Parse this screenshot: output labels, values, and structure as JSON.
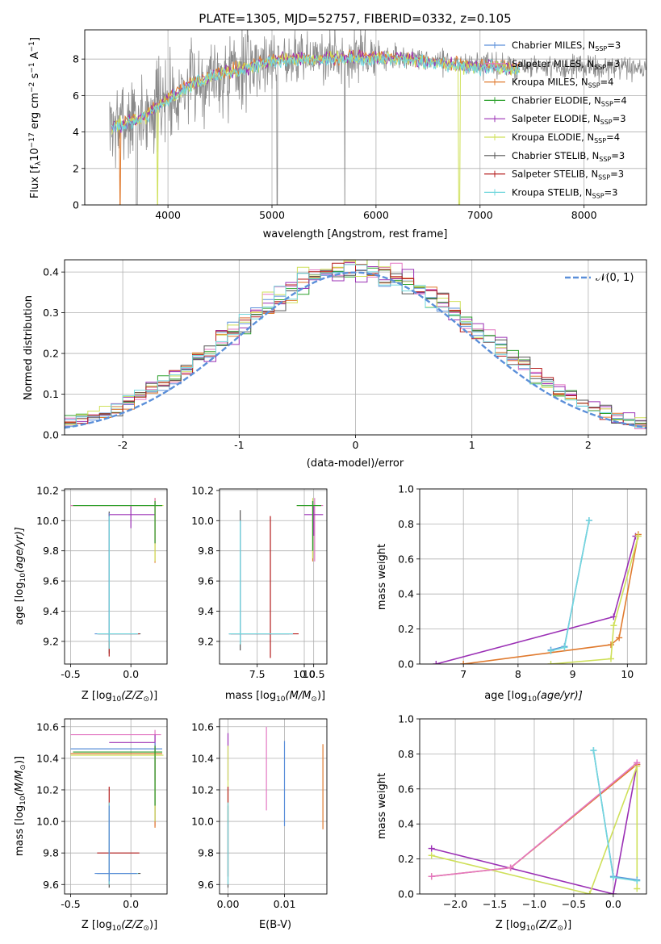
{
  "colors": {
    "Chabrier MILES": "#5b8fd9",
    "Salpeter MILES": "#e377c2",
    "Kroupa MILES": "#e07a2e",
    "Chabrier ELODIE": "#2ca02c",
    "Salpeter ELODIE": "#9b30b5",
    "Kroupa ELODIE": "#cfe05a",
    "Chabrier STELIB": "#555555",
    "Salpeter STELIB": "#b51d1d",
    "Kroupa STELIB": "#72d7dd",
    "normal": "#5b8fd9"
  },
  "chart_data": [
    {
      "type": "line",
      "title": "PLATE=1305, MJD=52757, FIBERID=0332, z=0.105",
      "xlabel": "wavelength [Angstrom, rest frame]",
      "ylabel": "Flux [f",
      "ylabel_sub": "λ",
      "ylabel_rest": "10",
      "ylabel_sup": "−17",
      "ylabel_unit": " erg cm",
      "ylabel_sup2": "−2",
      "ylabel_unit2": " s",
      "ylabel_sup3": "−1",
      "ylabel_unit3": " A",
      "ylabel_sup4": "−1",
      "ylabel_end": "]",
      "xlim": [
        3200,
        8600
      ],
      "ylim": [
        0,
        9.6
      ],
      "xticks": [
        4000,
        5000,
        6000,
        7000,
        8000
      ],
      "yticks": [
        0,
        2,
        4,
        6,
        8
      ],
      "legend_position": "top-right",
      "legend": [
        {
          "name": "Chabrier MILES",
          "n": "3"
        },
        {
          "name": "Salpeter MILES",
          "n": "3"
        },
        {
          "name": "Kroupa MILES",
          "n": "4"
        },
        {
          "name": "Chabrier ELODIE",
          "n": "4"
        },
        {
          "name": "Salpeter ELODIE",
          "n": "3"
        },
        {
          "name": "Kroupa ELODIE",
          "n": "4"
        },
        {
          "name": "Chabrier STELIB",
          "n": "3"
        },
        {
          "name": "Salpeter STELIB",
          "n": "3"
        },
        {
          "name": "Kroupa STELIB",
          "n": "3"
        }
      ],
      "legend_prefix": ", N",
      "legend_sub": "SSP",
      "legend_eq": "=",
      "continuum": [
        [
          3450,
          4.3
        ],
        [
          3600,
          4.6
        ],
        [
          3800,
          5.0
        ],
        [
          4000,
          5.9
        ],
        [
          4200,
          6.6
        ],
        [
          4400,
          7.1
        ],
        [
          4600,
          7.4
        ],
        [
          4800,
          7.7
        ],
        [
          5000,
          8.0
        ],
        [
          5300,
          8.1
        ],
        [
          5600,
          8.1
        ],
        [
          5900,
          8.15
        ],
        [
          6200,
          8.1
        ],
        [
          6500,
          7.9
        ],
        [
          6800,
          7.75
        ],
        [
          7100,
          7.65
        ],
        [
          7400,
          7.5
        ]
      ],
      "data_range": [
        3440,
        8600
      ]
    },
    {
      "type": "bar",
      "xlabel": "(data-model)/error",
      "ylabel": "Normed distribution",
      "xlim": [
        -2.5,
        2.5
      ],
      "ylim": [
        0,
        0.43
      ],
      "xticks": [
        -2,
        -1,
        0,
        1,
        2
      ],
      "yticks": [
        0.0,
        0.1,
        0.2,
        0.3,
        0.4
      ],
      "legend_position": "top-right",
      "normal_label": "𝒩(0, 1)",
      "bin_width": 0.1,
      "bin_start": -2.5
    },
    {
      "type": "scatter",
      "name": "age-vs-Z",
      "xlabel": "Z [log",
      "xlabel_sub": "10",
      "xlabel_rest": "(Z/Z",
      "xlabel_sub2": "⊙",
      "xlabel_end": ")]",
      "ylabel": "age  [log",
      "ylabel_sub": "10",
      "ylabel_rest": "(age/yr)]",
      "xlim": [
        -0.55,
        0.3
      ],
      "ylim": [
        9.05,
        10.21
      ],
      "xticks": [
        "-0.5",
        "0.0"
      ],
      "yticks": [
        "9.2",
        "9.4",
        "9.6",
        "9.8",
        "10.0",
        "10.2"
      ]
    },
    {
      "type": "scatter",
      "name": "age-vs-mass",
      "xlabel": "mass [log",
      "xlabel_sub": "10",
      "xlabel_rest": "(M/M",
      "xlabel_sub2": "⊙",
      "xlabel_end": ")]",
      "xlim": [
        5.5,
        11.2
      ],
      "ylim": [
        9.05,
        10.21
      ],
      "xticks": [
        "7.5",
        "10.0",
        "10.5"
      ],
      "xtick_values": [
        7.5,
        10.0,
        10.5
      ],
      "yticks": [
        "9.2",
        "9.4",
        "9.6",
        "9.8",
        "10.0",
        "10.2"
      ]
    },
    {
      "type": "line",
      "name": "mass-weight-vs-age",
      "xlabel": "age  [log",
      "xlabel_sub": "10",
      "xlabel_rest": "(age/yr)]",
      "ylabel": "mass weight",
      "xlim": [
        6.2,
        10.35
      ],
      "ylim": [
        0,
        1.0
      ],
      "xticks": [
        "7",
        "8",
        "9",
        "10"
      ],
      "yticks": [
        "0.0",
        "0.2",
        "0.4",
        "0.6",
        "0.8",
        "1.0"
      ]
    },
    {
      "type": "scatter",
      "name": "mass-vs-Z",
      "xlabel": "Z [log",
      "xlabel_sub": "10",
      "xlabel_rest": "(Z/Z",
      "xlabel_sub2": "⊙",
      "xlabel_end": ")]",
      "ylabel": "mass [log",
      "ylabel_sub": "10",
      "ylabel_rest": "(M/M",
      "ylabel_sub2": "⊙",
      "ylabel_end": ")]",
      "xlim": [
        -0.55,
        0.3
      ],
      "ylim": [
        9.54,
        10.65
      ],
      "xticks": [
        "-0.5",
        "0.0"
      ],
      "yticks": [
        "9.6",
        "9.8",
        "10.0",
        "10.2",
        "10.4",
        "10.6"
      ]
    },
    {
      "type": "scatter",
      "name": "mass-vs-EBV",
      "xlabel": "E(B-V)",
      "xlim": [
        -0.0015,
        0.0175
      ],
      "ylim": [
        9.54,
        10.65
      ],
      "xticks": [
        "0.00",
        "0.01"
      ],
      "yticks": [
        "9.6",
        "9.8",
        "10.0",
        "10.2",
        "10.4",
        "10.6"
      ]
    },
    {
      "type": "line",
      "name": "mass-weight-vs-Z",
      "xlabel": "Z [log",
      "xlabel_sub": "10",
      "xlabel_rest": "(Z/Z",
      "xlabel_sub2": "⊙",
      "xlabel_end": ")]",
      "ylabel": "mass weight",
      "xlim": [
        -2.45,
        0.42
      ],
      "ylim": [
        0,
        1.0
      ],
      "xticks": [
        "−2.0",
        "−1.5",
        "−1.0",
        "−0.5",
        "0.0"
      ],
      "yticks": [
        "0.0",
        "0.2",
        "0.4",
        "0.6",
        "0.8",
        "1.0"
      ]
    }
  ],
  "weights_age": [
    {
      "model": "Salpeter ELODIE",
      "points": [
        [
          6.5,
          0.0
        ],
        [
          9.75,
          0.27
        ],
        [
          10.15,
          0.73
        ]
      ]
    },
    {
      "model": "Kroupa MILES",
      "points": [
        [
          7.0,
          0.0
        ],
        [
          9.7,
          0.11
        ],
        [
          9.85,
          0.15
        ],
        [
          10.2,
          0.74
        ]
      ]
    },
    {
      "model": "Kroupa ELODIE",
      "points": [
        [
          8.6,
          0.0
        ],
        [
          9.7,
          0.03
        ],
        [
          9.75,
          0.22
        ],
        [
          10.2,
          0.73
        ]
      ]
    },
    {
      "model": "Chabrier MILES",
      "points": [
        [
          8.6,
          0.08
        ],
        [
          8.85,
          0.1
        ],
        [
          9.3,
          0.82
        ]
      ]
    },
    {
      "model": "Kroupa STELIB",
      "points": [
        [
          8.6,
          0.075
        ],
        [
          8.85,
          0.095
        ],
        [
          9.3,
          0.82
        ]
      ]
    }
  ],
  "weights_Z": [
    {
      "model": "Salpeter ELODIE",
      "points": [
        [
          -2.3,
          0.26
        ],
        [
          0.0,
          0.0
        ],
        [
          0.3,
          0.74
        ]
      ]
    },
    {
      "model": "Kroupa MILES",
      "points": [
        [
          -2.3,
          0.1
        ],
        [
          -1.3,
          0.15
        ],
        [
          0.3,
          0.74
        ]
      ]
    },
    {
      "model": "Kroupa ELODIE",
      "points": [
        [
          -2.3,
          0.22
        ],
        [
          -0.3,
          0.0
        ],
        [
          0.3,
          0.73
        ],
        [
          0.3,
          0.03
        ]
      ]
    },
    {
      "model": "Salpeter MILES",
      "points": [
        [
          -2.3,
          0.1
        ],
        [
          -1.3,
          0.15
        ],
        [
          0.3,
          0.75
        ]
      ]
    },
    {
      "model": "Chabrier MILES",
      "points": [
        [
          -0.25,
          0.82
        ],
        [
          0.0,
          0.1
        ],
        [
          0.3,
          0.08
        ]
      ]
    },
    {
      "model": "Kroupa STELIB",
      "points": [
        [
          -0.25,
          0.82
        ],
        [
          0.0,
          0.095
        ],
        [
          0.3,
          0.075
        ]
      ]
    }
  ]
}
